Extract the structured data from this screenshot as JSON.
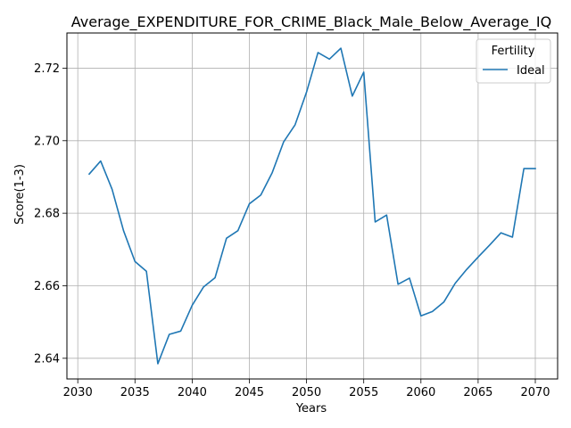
{
  "chart_data": {
    "type": "line",
    "title": "Average_EXPENDITURE_FOR_CRIME_Black_Male_Below_Average_IQ",
    "xlabel": "Years",
    "ylabel": "Score(1-3)",
    "xlim": [
      2029.05,
      2071.95
    ],
    "ylim": [
      2.6343,
      2.7297
    ],
    "xticks": [
      2030,
      2035,
      2040,
      2045,
      2050,
      2055,
      2060,
      2065,
      2070
    ],
    "xtick_labels": [
      "2030",
      "2035",
      "2040",
      "2045",
      "2050",
      "2055",
      "2060",
      "2065",
      "2070"
    ],
    "yticks": [
      2.64,
      2.66,
      2.68,
      2.7,
      2.72
    ],
    "ytick_labels": [
      "2.64",
      "2.66",
      "2.68",
      "2.70",
      "2.72"
    ],
    "grid": true,
    "legend": {
      "title": "Fertility",
      "position": "top-right"
    },
    "x": [
      2031,
      2032,
      2033,
      2034,
      2035,
      2036,
      2037,
      2038,
      2039,
      2040,
      2041,
      2042,
      2043,
      2044,
      2045,
      2046,
      2047,
      2048,
      2049,
      2050,
      2051,
      2052,
      2053,
      2054,
      2055,
      2056,
      2057,
      2058,
      2059,
      2060,
      2061,
      2062,
      2063,
      2064,
      2065,
      2066,
      2067,
      2068,
      2069,
      2070
    ],
    "series": [
      {
        "name": "Ideal",
        "color": "#1f77b4",
        "values": [
          2.6908,
          2.6944,
          2.6866,
          2.6752,
          2.6667,
          2.664,
          2.6385,
          2.6466,
          2.6475,
          2.6546,
          2.6597,
          2.6622,
          2.6731,
          2.6752,
          2.6826,
          2.685,
          2.6912,
          2.6997,
          2.7044,
          2.7134,
          2.7243,
          2.7225,
          2.7255,
          2.7123,
          2.7189,
          2.6776,
          2.6795,
          2.6604,
          2.6621,
          2.6517,
          2.6529,
          2.6555,
          2.6607,
          2.6645,
          2.6679,
          2.6712,
          2.6746,
          2.6734,
          2.6923,
          2.6923
        ]
      }
    ]
  }
}
